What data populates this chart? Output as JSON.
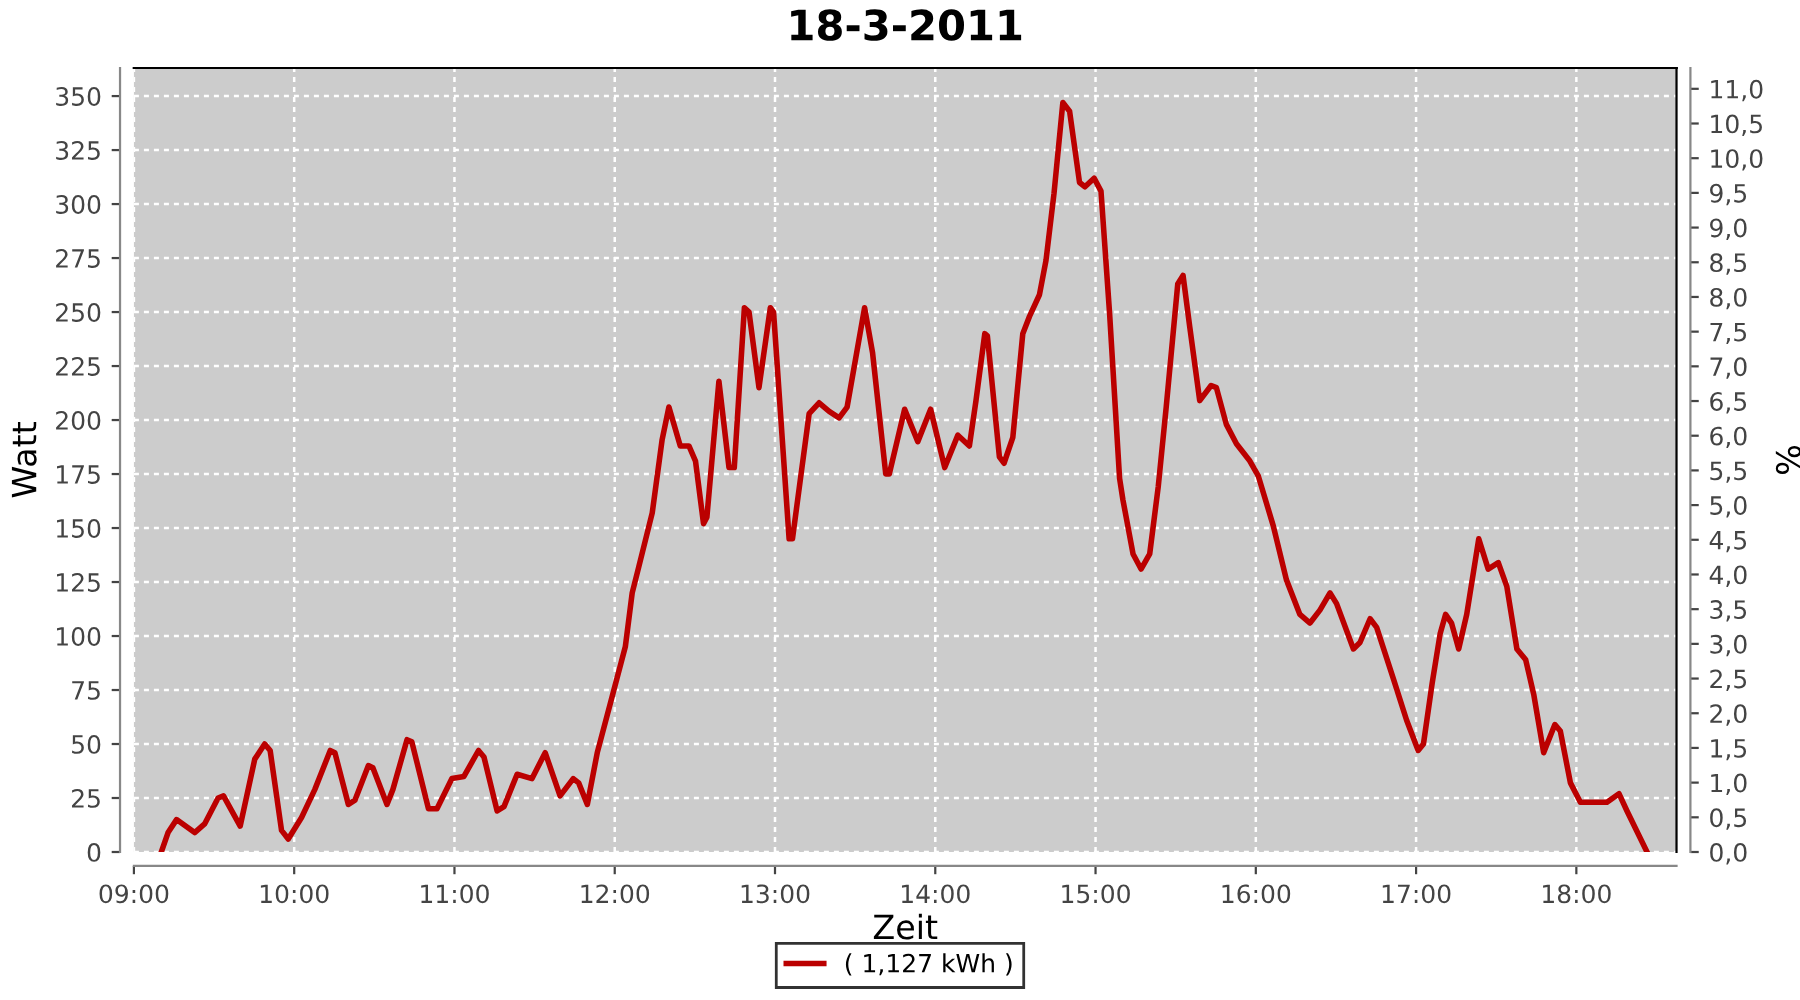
{
  "chart_data": {
    "type": "line",
    "title": "18-3-2011",
    "xlabel": "Zeit",
    "ylabel": "Watt",
    "y2label": "%",
    "xlim": [
      9.0,
      18.625
    ],
    "xticks": [
      {
        "value": 9,
        "label": "09:00"
      },
      {
        "value": 10,
        "label": "10:00"
      },
      {
        "value": 11,
        "label": "11:00"
      },
      {
        "value": 12,
        "label": "12:00"
      },
      {
        "value": 13,
        "label": "13:00"
      },
      {
        "value": 14,
        "label": "14:00"
      },
      {
        "value": 15,
        "label": "15:00"
      },
      {
        "value": 16,
        "label": "16:00"
      },
      {
        "value": 17,
        "label": "17:00"
      },
      {
        "value": 18,
        "label": "18:00"
      }
    ],
    "ylim": [
      0,
      363
    ],
    "yticks": [
      0,
      25,
      50,
      75,
      100,
      125,
      150,
      175,
      200,
      225,
      250,
      275,
      300,
      325,
      350
    ],
    "y2lim": [
      0,
      11.3
    ],
    "y2ticks": [
      {
        "value": 0,
        "label": "0,0"
      },
      {
        "value": 0.5,
        "label": "0,5"
      },
      {
        "value": 1,
        "label": "1,0"
      },
      {
        "value": 1.5,
        "label": "1,5"
      },
      {
        "value": 2,
        "label": "2,0"
      },
      {
        "value": 2.5,
        "label": "2,5"
      },
      {
        "value": 3,
        "label": "3,0"
      },
      {
        "value": 3.5,
        "label": "3,5"
      },
      {
        "value": 4,
        "label": "4,0"
      },
      {
        "value": 4.5,
        "label": "4,5"
      },
      {
        "value": 5,
        "label": "5,0"
      },
      {
        "value": 5.5,
        "label": "5,5"
      },
      {
        "value": 6,
        "label": "6,0"
      },
      {
        "value": 6.5,
        "label": "6,5"
      },
      {
        "value": 7,
        "label": "7,0"
      },
      {
        "value": 7.5,
        "label": "7,5"
      },
      {
        "value": 8,
        "label": "8,0"
      },
      {
        "value": 8.5,
        "label": "8,5"
      },
      {
        "value": 9,
        "label": "9,0"
      },
      {
        "value": 9.5,
        "label": "9,5"
      },
      {
        "value": 10,
        "label": "10,0"
      },
      {
        "value": 10.5,
        "label": "10,5"
      },
      {
        "value": 11,
        "label": "11,0"
      }
    ],
    "grid": true,
    "legend": "bottom",
    "marker": "none",
    "line_style": "solid",
    "series": [
      {
        "name": "( 1,127 kWh )",
        "color": "#bb0000",
        "x": [
          9.171,
          9.213,
          9.266,
          9.379,
          9.441,
          9.525,
          9.559,
          9.663,
          9.754,
          9.816,
          9.85,
          9.921,
          9.963,
          10.046,
          10.129,
          10.225,
          10.254,
          10.338,
          10.379,
          10.463,
          10.491,
          10.579,
          10.616,
          10.704,
          10.734,
          10.838,
          10.891,
          10.984,
          11.059,
          11.15,
          11.184,
          11.266,
          11.309,
          11.391,
          11.484,
          11.566,
          11.659,
          11.741,
          11.775,
          11.829,
          11.891,
          11.984,
          12.066,
          12.109,
          12.15,
          12.234,
          12.296,
          12.338,
          12.409,
          12.463,
          12.504,
          12.554,
          12.575,
          12.65,
          12.713,
          12.746,
          12.809,
          12.838,
          12.9,
          12.971,
          12.991,
          13.088,
          13.109,
          13.213,
          13.275,
          13.338,
          13.4,
          13.45,
          13.559,
          13.609,
          13.691,
          13.713,
          13.809,
          13.891,
          13.971,
          14.059,
          14.141,
          14.213,
          14.254,
          14.309,
          14.325,
          14.4,
          14.429,
          14.484,
          14.546,
          14.588,
          14.65,
          14.691,
          14.741,
          14.796,
          14.838,
          14.9,
          14.934,
          14.991,
          15.034,
          15.088,
          15.15,
          15.171,
          15.234,
          15.284,
          15.338,
          15.391,
          15.441,
          15.513,
          15.546,
          15.588,
          15.65,
          15.721,
          15.754,
          15.816,
          15.879,
          15.963,
          16.016,
          16.109,
          16.191,
          16.275,
          16.338,
          16.4,
          16.463,
          16.504,
          16.609,
          16.65,
          16.713,
          16.754,
          16.859,
          16.941,
          17.013,
          17.046,
          17.1,
          17.15,
          17.184,
          17.221,
          17.266,
          17.316,
          17.391,
          17.45,
          17.513,
          17.566,
          17.629,
          17.684,
          17.734,
          17.796,
          17.866,
          17.9,
          17.963,
          18.025,
          18.191,
          18.266,
          18.316,
          18.441
        ],
        "values": [
          0,
          9,
          15,
          9,
          13,
          25,
          26,
          12,
          43,
          50,
          47,
          10,
          6,
          16,
          29,
          47,
          46,
          22,
          24,
          40,
          39,
          22,
          29,
          52,
          51,
          20,
          20,
          34,
          35,
          47,
          44,
          19,
          21,
          36,
          34,
          46,
          26,
          34,
          32,
          22,
          46,
          72,
          95,
          120,
          132,
          157,
          191,
          206,
          188,
          188,
          181,
          152,
          155,
          218,
          178,
          178,
          252,
          250,
          215,
          252,
          250,
          145,
          145,
          203,
          208,
          204,
          201,
          206,
          252,
          231,
          175,
          175,
          205,
          190,
          205,
          178,
          193,
          188,
          209,
          240,
          239,
          183,
          180,
          192,
          240,
          248,
          258,
          274,
          305,
          347,
          343,
          310,
          308,
          312,
          306,
          249,
          173,
          163,
          138,
          131,
          138,
          169,
          206,
          263,
          267,
          243,
          209,
          216,
          215,
          198,
          189,
          181,
          174,
          151,
          126,
          110,
          106,
          112,
          120,
          115,
          94,
          97,
          108,
          104,
          80,
          61,
          47,
          50,
          78,
          101,
          110,
          106,
          94,
          110,
          145,
          131,
          134,
          123,
          94,
          89,
          73,
          46,
          59,
          56,
          32,
          23,
          23,
          27,
          19,
          0
        ]
      }
    ]
  }
}
